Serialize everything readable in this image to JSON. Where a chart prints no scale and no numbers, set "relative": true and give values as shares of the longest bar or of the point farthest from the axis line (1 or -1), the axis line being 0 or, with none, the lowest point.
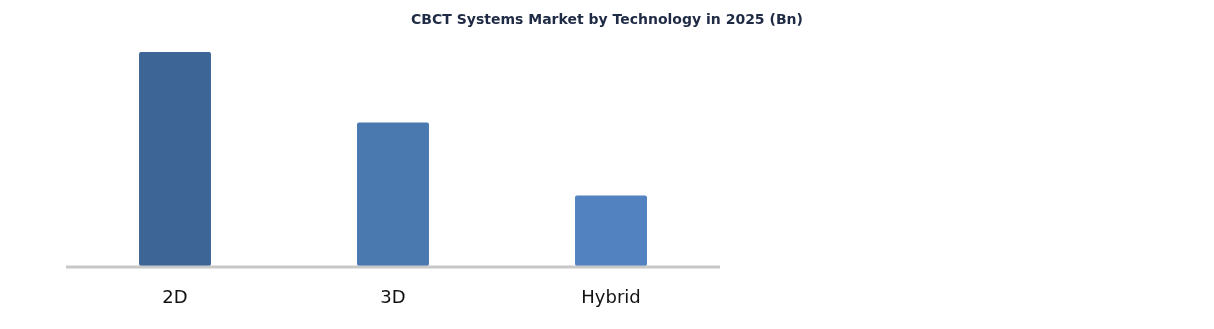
{
  "chart_data": {
    "type": "bar",
    "title": "CBCT Systems Market by Technology in 2025 (Bn)",
    "categories": [
      "2D",
      "3D",
      "Hybrid"
    ],
    "relative": true,
    "values": [
      1,
      0.67,
      0.33
    ],
    "colors": [
      "#3d6596",
      "#4a79b0",
      "#5282c0"
    ]
  }
}
